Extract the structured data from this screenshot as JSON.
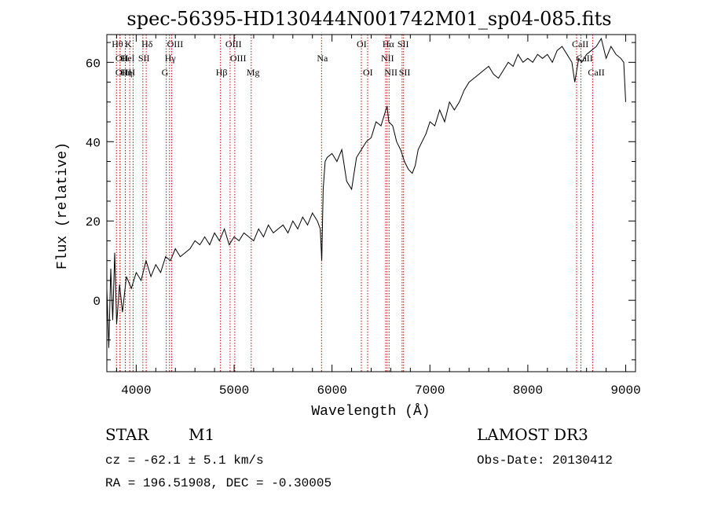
{
  "chart_data": {
    "type": "line",
    "title": "spec-56395-HD130444N001742M01_sp04-085.fits",
    "xlabel": "Wavelength (Å)",
    "ylabel": "Flux (relative)",
    "xlim": [
      3700,
      9100
    ],
    "ylim": [
      -18,
      67
    ],
    "x_ticks": [
      4000,
      5000,
      6000,
      7000,
      8000,
      9000
    ],
    "x_tick_labels": [
      "4000",
      "5000",
      "6000",
      "7000",
      "8000",
      "9000"
    ],
    "y_ticks": [
      0,
      20,
      40,
      60
    ],
    "y_tick_labels": [
      "0",
      "20",
      "40",
      "60"
    ],
    "grid": false,
    "line_color": "#000000",
    "marker_line_color": "#cc0000",
    "series": [
      {
        "name": "flux",
        "x": [
          3700,
          3720,
          3740,
          3760,
          3780,
          3800,
          3830,
          3860,
          3900,
          3950,
          4000,
          4050,
          4100,
          4150,
          4200,
          4250,
          4300,
          4350,
          4400,
          4450,
          4500,
          4550,
          4600,
          4650,
          4700,
          4750,
          4800,
          4850,
          4900,
          4950,
          5000,
          5050,
          5100,
          5150,
          5200,
          5250,
          5300,
          5350,
          5400,
          5450,
          5500,
          5550,
          5600,
          5650,
          5700,
          5750,
          5800,
          5850,
          5880,
          5895,
          5910,
          5930,
          5950,
          6000,
          6050,
          6100,
          6150,
          6200,
          6250,
          6300,
          6350,
          6400,
          6450,
          6500,
          6550,
          6563,
          6580,
          6620,
          6660,
          6700,
          6740,
          6780,
          6820,
          6850,
          6880,
          6920,
          6960,
          7000,
          7050,
          7100,
          7150,
          7200,
          7250,
          7300,
          7350,
          7400,
          7450,
          7500,
          7550,
          7600,
          7650,
          7700,
          7750,
          7800,
          7850,
          7900,
          7950,
          8000,
          8050,
          8100,
          8150,
          8200,
          8250,
          8300,
          8350,
          8400,
          8450,
          8480,
          8500,
          8520,
          8550,
          8600,
          8650,
          8700,
          8750,
          8800,
          8850,
          8900,
          8950,
          8980,
          9000
        ],
        "values": [
          3,
          -12,
          8,
          -5,
          12,
          -6,
          4,
          -3,
          6,
          3,
          7,
          5,
          10,
          6,
          9,
          7,
          11,
          10,
          13,
          11,
          12,
          13,
          15,
          14,
          16,
          14,
          17,
          15,
          18,
          14,
          16,
          15,
          17,
          16,
          15,
          18,
          16,
          19,
          17,
          18,
          19,
          17,
          20,
          18,
          21,
          19,
          22,
          20,
          18,
          10,
          28,
          35,
          36,
          37,
          35,
          38,
          30,
          28,
          36,
          38,
          40,
          41,
          45,
          44,
          48,
          49,
          45,
          44,
          40,
          38,
          35,
          33,
          32,
          34,
          38,
          40,
          42,
          45,
          44,
          48,
          45,
          50,
          48,
          50,
          53,
          55,
          56,
          57,
          58,
          59,
          57,
          56,
          58,
          60,
          59,
          62,
          60,
          61,
          60,
          62,
          61,
          62,
          60,
          63,
          64,
          62,
          60,
          55,
          58,
          61,
          60,
          62,
          63,
          64,
          66,
          61,
          64,
          62,
          61,
          60,
          50
        ]
      }
    ],
    "line_markers": [
      {
        "wl": 3798,
        "label": "Hθ",
        "row": 1
      },
      {
        "wl": 3835,
        "label": "OII",
        "row": 2
      },
      {
        "wl": 3835,
        "label": "OIII",
        "row": 3
      },
      {
        "wl": 3889,
        "label": "HeI",
        "row": 2
      },
      {
        "wl": 3889,
        "label": "Hη",
        "row": 3
      },
      {
        "wl": 3934,
        "label": "K",
        "row": 1
      },
      {
        "wl": 3968,
        "label": "H",
        "row": 3
      },
      {
        "wl": 4068,
        "label": "SII",
        "row": 2
      },
      {
        "wl": 4102,
        "label": "Hδ",
        "row": 1
      },
      {
        "wl": 4307,
        "label": "G",
        "row": 3
      },
      {
        "wl": 4340,
        "label": "Hγ",
        "row": 2
      },
      {
        "wl": 4363,
        "label": "OIII",
        "row": 1
      },
      {
        "wl": 4861,
        "label": "Hβ",
        "row": 3
      },
      {
        "wl": 4959,
        "label": "OIII",
        "row": 1
      },
      {
        "wl": 5007,
        "label": "OIII",
        "row": 2
      },
      {
        "wl": 5175,
        "label": "Mg",
        "row": 3
      },
      {
        "wl": 5893,
        "label": "Na",
        "row": 2
      },
      {
        "wl": 6300,
        "label": "OI",
        "row": 1
      },
      {
        "wl": 6364,
        "label": "OI",
        "row": 3
      },
      {
        "wl": 6548,
        "label": "NII",
        "row": 2
      },
      {
        "wl": 6563,
        "label": "Hα",
        "row": 1
      },
      {
        "wl": 6583,
        "label": "NII",
        "row": 3
      },
      {
        "wl": 6716,
        "label": "SII",
        "row": 1
      },
      {
        "wl": 6731,
        "label": "SII",
        "row": 3
      },
      {
        "wl": 8498,
        "label": "CaII",
        "row": 1
      },
      {
        "wl": 8542,
        "label": "CaII",
        "row": 2
      },
      {
        "wl": 8662,
        "label": "CaII",
        "row": 3
      }
    ]
  },
  "info": {
    "class_label": "STAR",
    "subclass": "M1",
    "survey": "LAMOST DR3",
    "cz": "cz = -62.1 ± 5.1 km/s",
    "obs_date": "Obs-Date: 20130412",
    "coords": "RA = 196.51908, DEC =  -0.30005"
  }
}
